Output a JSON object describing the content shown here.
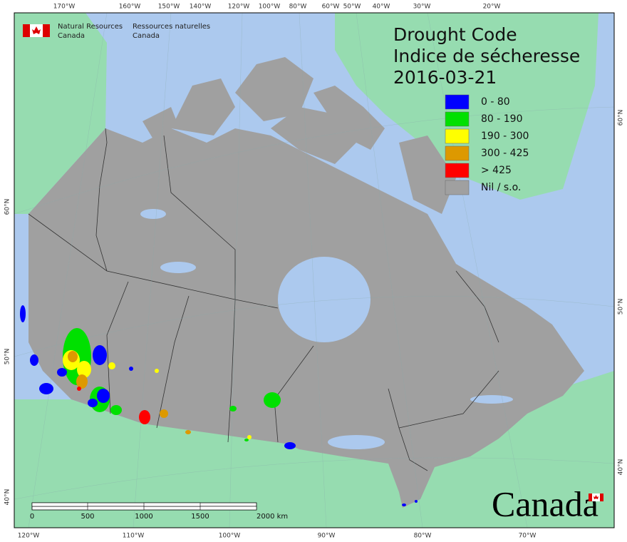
{
  "header": {
    "agency_en": [
      "Natural Resources",
      "Canada"
    ],
    "agency_fr": [
      "Ressources naturelles",
      "Canada"
    ]
  },
  "title": [
    "Drought Code",
    "Indice de sécheresse"
  ],
  "date": "2016-03-21",
  "legend": [
    {
      "label": "0 - 80",
      "color": "#0000ff"
    },
    {
      "label": "80 - 190",
      "color": "#00e000"
    },
    {
      "label": "190 - 300",
      "color": "#ffff00"
    },
    {
      "label": "300 - 425",
      "color": "#dd9900"
    },
    {
      "label": "> 425",
      "color": "#ff0000"
    },
    {
      "label": "Nil / s.o.",
      "color": "#a0a0a0"
    }
  ],
  "graticule": {
    "top": [
      "170°W",
      "160°W",
      "150°W",
      "140°W",
      "120°W",
      "100°W",
      "80°W",
      "60°W",
      "50°W",
      "40°W",
      "30°W",
      "20°W"
    ],
    "bottom": [
      "120°W",
      "110°W",
      "100°W",
      "90°W",
      "80°W",
      "70°W"
    ],
    "left": [
      "60°N",
      "50°N",
      "40°N"
    ],
    "right": [
      "60°N",
      "50°N",
      "40°N"
    ]
  },
  "scale_bar": [
    "0",
    "500",
    "1000",
    "1500",
    "2000 km"
  ],
  "wordmark": "Canada"
}
